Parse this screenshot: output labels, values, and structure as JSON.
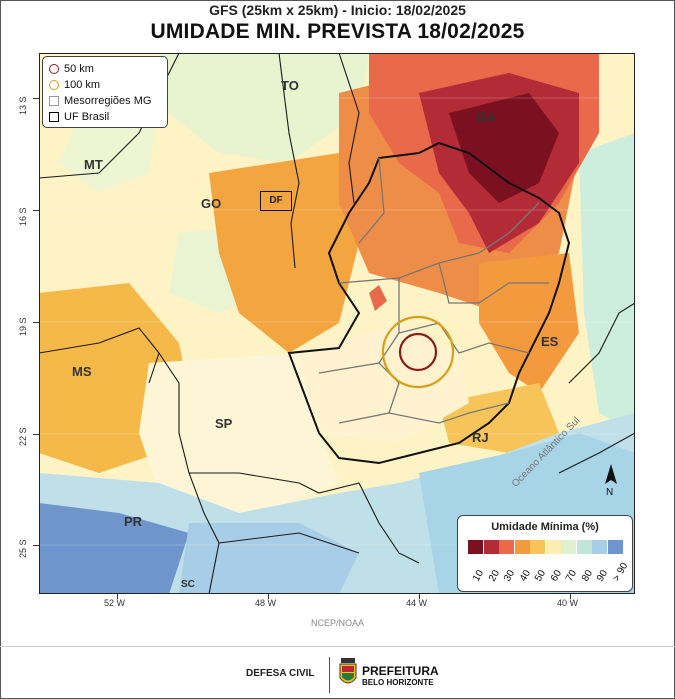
{
  "header": {
    "subtitle": "GFS (25km x 25km) - Inicio: 18/02/2025",
    "title": "UMIDADE MIN. PREVISTA 18/02/2025"
  },
  "map_legend": {
    "items": [
      {
        "label": "50 km",
        "symbol": "circle",
        "color": "#8b1a1a"
      },
      {
        "label": "100 km",
        "symbol": "circle",
        "color": "#d4a017"
      },
      {
        "label": "Mesorregiões MG",
        "symbol": "square",
        "color": "#999999"
      },
      {
        "label": "UF Brasil",
        "symbol": "square",
        "color": "#000000"
      }
    ]
  },
  "color_scale": {
    "title": "Umidade Mínima (%)",
    "bins": [
      {
        "label": "10",
        "color": "#7a1020"
      },
      {
        "label": "20",
        "color": "#b32b36"
      },
      {
        "label": "30",
        "color": "#e86a4a"
      },
      {
        "label": "40",
        "color": "#f39a3f"
      },
      {
        "label": "50",
        "color": "#f7c45a"
      },
      {
        "label": "60",
        "color": "#fbeeb0"
      },
      {
        "label": "70",
        "color": "#dff2d0"
      },
      {
        "label": "80",
        "color": "#bfe6d8"
      },
      {
        "label": "90",
        "color": "#a8cde6"
      },
      {
        "label": "> 90",
        "color": "#6f96cc"
      }
    ]
  },
  "axes": {
    "lat_labels": [
      "13 S",
      "16 S",
      "19 S",
      "22 S",
      "25 S"
    ],
    "lon_labels": [
      "52 W",
      "48 W",
      "44 W",
      "40 W"
    ]
  },
  "states": [
    "TO",
    "BA",
    "MT",
    "GO",
    "DF",
    "MS",
    "SP",
    "ES",
    "RJ",
    "PR",
    "SC"
  ],
  "ocean_label": "Oceano Atlântico Sul",
  "north_label": "N",
  "credit": "NCEP/NOAA",
  "footer": {
    "defesa": "DEFESA CIVIL",
    "pref_title": "PREFEITURA",
    "pref_subtitle": "BELO HORIZONTE"
  }
}
